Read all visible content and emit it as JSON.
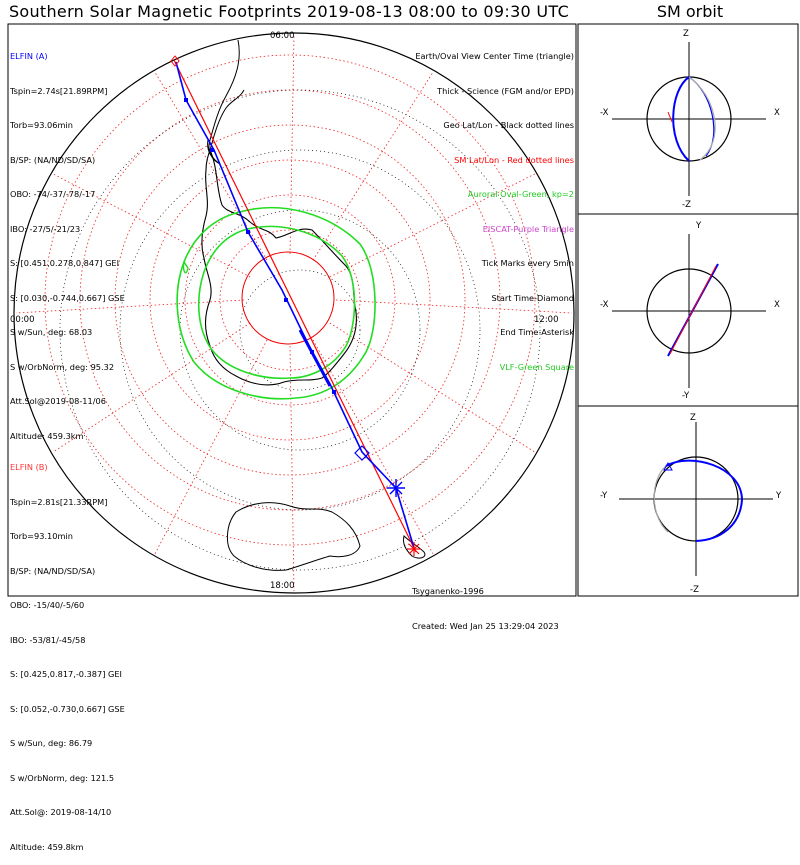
{
  "title": "Southern Solar Magnetic Footprints 2019-08-13 08:00 to 09:30 UTC",
  "sm_title": "SM orbit",
  "clock_labels": {
    "top": "06:00",
    "left": "00:00",
    "right": "12:00",
    "bottom": "18:00"
  },
  "elfin_a": {
    "name": "ELFIN (A)",
    "lines": [
      "Tspin=2.74s[21.89RPM]",
      "Torb=93.06min",
      "B/SP: (NA/ND/SD/SA)",
      "OBO: -74/-37/-78/-17",
      "IBO: -27/5/-21/23",
      "S: [0.451,0.278,0.847] GEI",
      "S: [0.030,-0.744,0.667] GSE",
      "S w/Sun, deg: 68.03",
      "S w/OrbNorm, deg: 95.32",
      "Att.Sol@2019-08-11/06",
      "Altitude: 459.3km"
    ]
  },
  "elfin_b": {
    "name": "ELFIN (B)",
    "lines": [
      "Tspin=2.81s[21.33RPM]",
      "Torb=93.10min",
      "B/SP: (NA/ND/SD/SA)",
      "OBO: -15/40/-5/60",
      "IBO: -53/81/-45/58",
      "S: [0.425,0.817,-0.387] GEI",
      "S: [0.052,-0.730,0.667] GSE",
      "S w/Sun, deg: 86.79",
      "S w/OrbNorm, deg: 121.5",
      "Att.Sol@: 2019-08-14/10",
      "Altitude: 459.8km"
    ]
  },
  "legend": [
    {
      "text": "Earth/Oval View Center Time (triangle)",
      "color": "#000000"
    },
    {
      "text": "Thick - Science (FGM and/or EPD)",
      "color": "#000000"
    },
    {
      "text": "Geo Lat/Lon - Black dotted lines",
      "color": "#000000"
    },
    {
      "text": "SM Lat/Lon - Red dotted lines",
      "color": "#ff0000"
    },
    {
      "text": "Auroral Oval-Green, kp=2",
      "color": "#00cc00"
    },
    {
      "text": "EISCAT-Purple Triangle",
      "color": "#cc44cc"
    },
    {
      "text": "Tick Marks every 5min",
      "color": "#000000"
    },
    {
      "text": "Start Time-Diamond",
      "color": "#000000"
    },
    {
      "text": "End Time-Asterisk",
      "color": "#000000"
    },
    {
      "text": "VLF-Green Square",
      "color": "#00cc00"
    }
  ],
  "credits": [
    "Tsyganenko-1996",
    "Created: Wed Jan 25 13:29:04 2023"
  ],
  "panels": [
    {
      "top": "Z",
      "bottom": "-Z",
      "left": "-X",
      "right": "X"
    },
    {
      "top": "Y",
      "bottom": "-Y",
      "left": "-X",
      "right": "X"
    },
    {
      "top": "Z",
      "bottom": "-Z",
      "left": "-Y",
      "right": "Y"
    }
  ],
  "colors": {
    "elfin_a": "#0000ff",
    "elfin_b": "#ff0000",
    "oval": "#00dd00",
    "grid": "#ff0000"
  }
}
